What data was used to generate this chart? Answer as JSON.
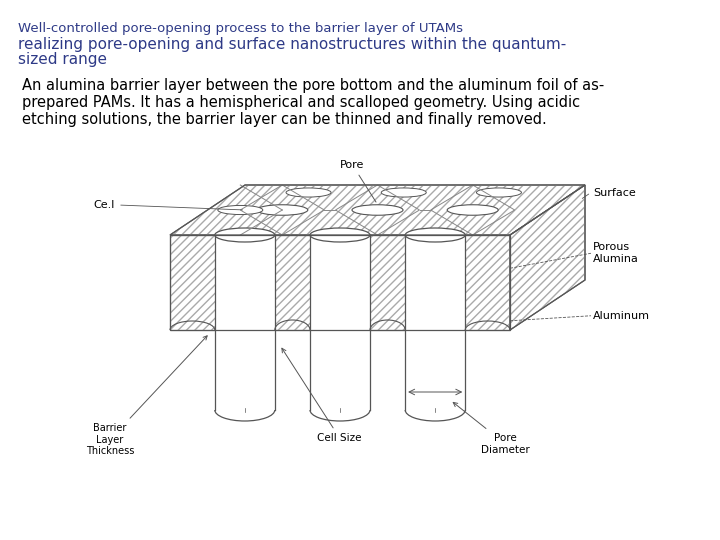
{
  "bg_color": "#ffffff",
  "title_line1": "Well-controlled pore-opening process to the barrier layer of UTAMs",
  "title_line2": "realizing pore-opening and surface nanostructures within the quantum-",
  "title_line3": "sized range",
  "title_color": "#2E3A87",
  "title_fontsize": 11.0,
  "body_text": "An alumina barrier layer between the pore bottom and the aluminum foil of as-\nprepared PAMs. It has a hemispherical and scalloped geometry. Using acidic\netching solutions, the barrier layer can be thinned and finally removed.",
  "body_color": "#000000",
  "body_fontsize": 10.5,
  "diagram_label_color": "#000000",
  "diagram_label_fontsize": 8.0,
  "line_color": "#555555",
  "hatch_color": "#aaaaaa"
}
